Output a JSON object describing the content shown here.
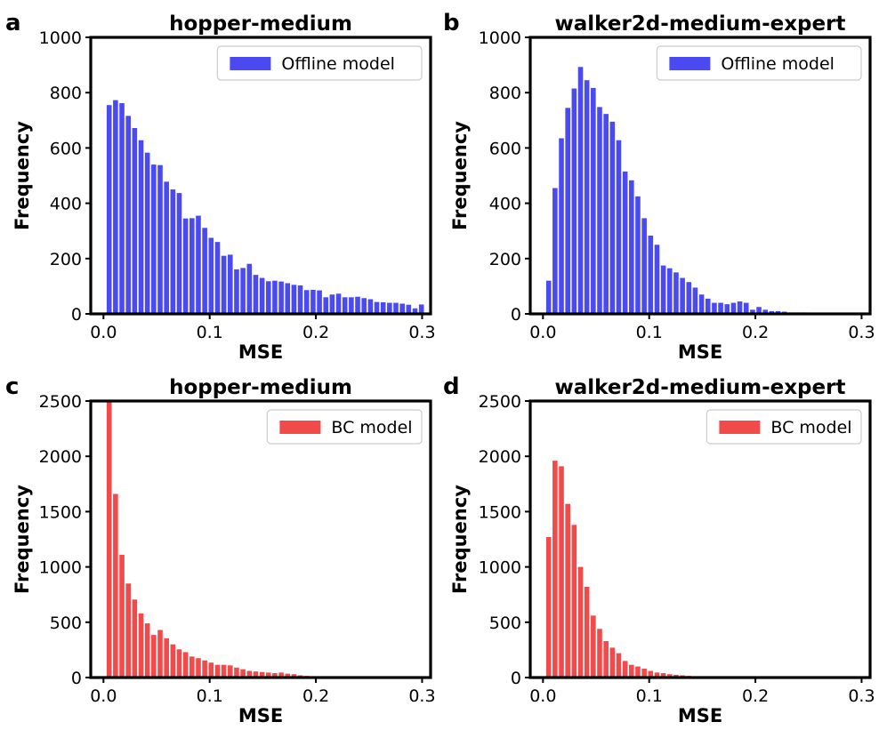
{
  "chart_data": [
    {
      "panel_label": "a",
      "type": "bar",
      "title": "hopper-medium",
      "xlabel": "MSE",
      "ylabel": "Frequency",
      "xlim": [
        -0.012,
        0.308
      ],
      "ylim": [
        0,
        1000
      ],
      "xticks": [
        "0.0",
        "0.1",
        "0.2",
        "0.3"
      ],
      "xtick_values": [
        0.0,
        0.1,
        0.2,
        0.3
      ],
      "yticks": [
        "0",
        "200",
        "400",
        "600",
        "800",
        "1000"
      ],
      "ytick_values": [
        0,
        200,
        400,
        600,
        800,
        1000
      ],
      "bin_width": 0.006,
      "x_start": 0.003,
      "legend_position": "top-right",
      "series": [
        {
          "name": "Offline model",
          "color": "#4a4af0",
          "values": [
            755,
            773,
            762,
            716,
            672,
            628,
            583,
            540,
            538,
            478,
            450,
            437,
            345,
            346,
            355,
            311,
            275,
            260,
            210,
            214,
            161,
            166,
            181,
            141,
            130,
            118,
            120,
            117,
            111,
            105,
            103,
            86,
            87,
            85,
            60,
            70,
            73,
            60,
            60,
            62,
            57,
            53,
            43,
            42,
            40,
            40,
            37,
            33,
            20,
            34
          ]
        }
      ]
    },
    {
      "panel_label": "b",
      "type": "bar",
      "title": "walker2d-medium-expert",
      "xlabel": "MSE",
      "ylabel": "Frequency",
      "xlim": [
        -0.012,
        0.308
      ],
      "ylim": [
        0,
        1000
      ],
      "xticks": [
        "0.0",
        "0.1",
        "0.2",
        "0.3"
      ],
      "xtick_values": [
        0.0,
        0.1,
        0.2,
        0.3
      ],
      "yticks": [
        "0",
        "200",
        "400",
        "600",
        "800",
        "1000"
      ],
      "ytick_values": [
        0,
        200,
        400,
        600,
        800,
        1000
      ],
      "bin_width": 0.006,
      "x_start": 0.003,
      "legend_position": "top-right",
      "series": [
        {
          "name": "Offline model",
          "color": "#4a4af0",
          "values": [
            120,
            455,
            635,
            745,
            815,
            893,
            845,
            817,
            748,
            723,
            695,
            628,
            515,
            483,
            425,
            346,
            283,
            250,
            175,
            165,
            150,
            130,
            115,
            95,
            70,
            55,
            40,
            40,
            35,
            40,
            45,
            40,
            15,
            25,
            15,
            10,
            10,
            8,
            5,
            5,
            5,
            3,
            3,
            2,
            2,
            2,
            1,
            1,
            1,
            3
          ]
        }
      ]
    },
    {
      "panel_label": "c",
      "type": "bar",
      "title": "hopper-medium",
      "xlabel": "MSE",
      "ylabel": "Frequency",
      "xlim": [
        -0.012,
        0.308
      ],
      "ylim": [
        0,
        2500
      ],
      "xticks": [
        "0.0",
        "0.1",
        "0.2",
        "0.3"
      ],
      "xtick_values": [
        0.0,
        0.1,
        0.2,
        0.3
      ],
      "yticks": [
        "0",
        "500",
        "1000",
        "1500",
        "2000",
        "2500"
      ],
      "ytick_values": [
        0,
        500,
        1000,
        1500,
        2000,
        2500
      ],
      "bin_width": 0.006,
      "x_start": 0.003,
      "legend_position": "top-right",
      "series": [
        {
          "name": "BC model",
          "color": "#f04a4a",
          "values": [
            2500,
            1660,
            1110,
            850,
            705,
            580,
            490,
            385,
            430,
            355,
            300,
            255,
            230,
            190,
            175,
            155,
            135,
            115,
            115,
            110,
            90,
            75,
            60,
            55,
            50,
            45,
            40,
            45,
            35,
            30,
            20,
            15,
            12,
            10,
            10,
            8,
            8,
            6,
            5,
            5,
            4,
            4,
            3,
            3,
            3,
            2,
            2,
            2,
            2,
            2
          ]
        }
      ]
    },
    {
      "panel_label": "d",
      "type": "bar",
      "title": "walker2d-medium-expert",
      "xlabel": "MSE",
      "ylabel": "Frequency",
      "xlim": [
        -0.012,
        0.308
      ],
      "ylim": [
        0,
        2500
      ],
      "xticks": [
        "0.0",
        "0.1",
        "0.2",
        "0.3"
      ],
      "xtick_values": [
        0.0,
        0.1,
        0.2,
        0.3
      ],
      "yticks": [
        "0",
        "500",
        "1000",
        "1500",
        "2000",
        "2500"
      ],
      "ytick_values": [
        0,
        500,
        1000,
        1500,
        2000,
        2500
      ],
      "bin_width": 0.006,
      "x_start": 0.003,
      "legend_position": "top-right",
      "series": [
        {
          "name": "BC model",
          "color": "#f04a4a",
          "values": [
            1270,
            1960,
            1910,
            1570,
            1380,
            1000,
            820,
            560,
            440,
            330,
            270,
            220,
            150,
            115,
            100,
            80,
            60,
            45,
            40,
            30,
            25,
            20,
            15,
            10,
            8,
            6,
            5,
            4,
            3,
            3,
            2,
            2,
            1,
            1,
            1,
            1,
            1,
            1,
            1,
            0,
            0,
            0,
            0,
            0,
            0,
            0,
            0,
            0,
            0,
            0
          ]
        }
      ]
    }
  ]
}
